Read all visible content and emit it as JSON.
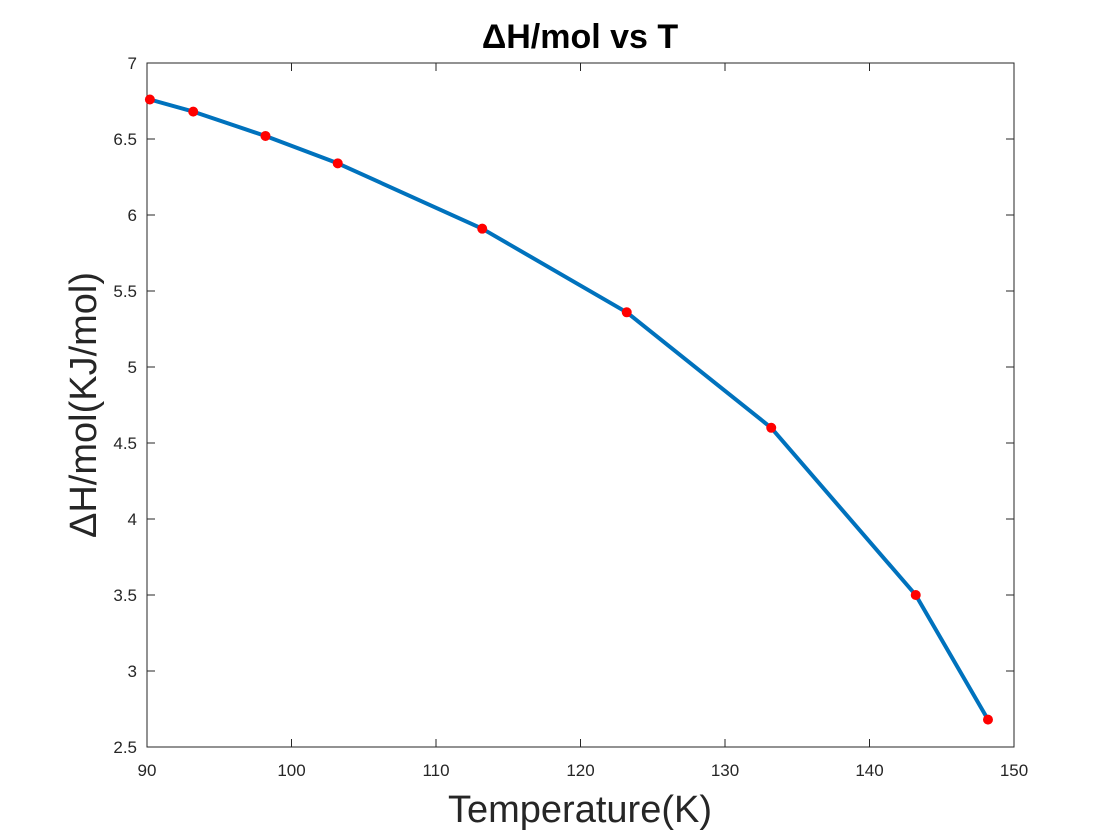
{
  "chart_data": {
    "type": "line",
    "title": "ΔH/mol vs T",
    "xlabel": "Temperature(K)",
    "ylabel": "ΔH/mol(KJ/mol)",
    "xlim": [
      90,
      150
    ],
    "ylim": [
      2.5,
      7
    ],
    "xticks": [
      "90",
      "100",
      "110",
      "120",
      "130",
      "140",
      "150"
    ],
    "yticks": [
      "2.5",
      "3",
      "3.5",
      "4",
      "4.5",
      "5",
      "5.5",
      "6",
      "6.5",
      "7"
    ],
    "grid": false,
    "series": [
      {
        "x": [
          90.2,
          93.2,
          98.2,
          103.2,
          113.2,
          123.2,
          133.2,
          143.2,
          148.2
        ],
        "y": [
          6.76,
          6.68,
          6.52,
          6.34,
          5.91,
          5.36,
          4.6,
          3.5,
          2.68
        ],
        "line_color": "#0072bd",
        "marker_color": "#ff0000"
      }
    ]
  }
}
